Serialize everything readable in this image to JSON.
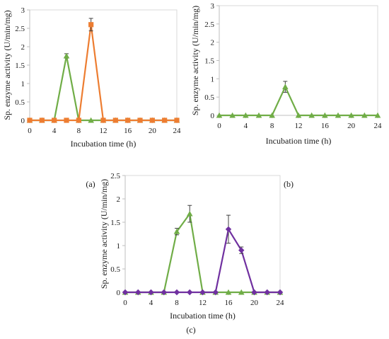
{
  "chart_data": [
    {
      "panel": "a",
      "panel_label": "(a)",
      "type": "line",
      "xlabel": "Incubation time (h)",
      "ylabel": "Sp. enzyme activity (U/min/mg)",
      "xlim": [
        0,
        24
      ],
      "ylim": [
        0,
        3
      ],
      "xticks": [
        0,
        4,
        8,
        12,
        16,
        20,
        24
      ],
      "yticks": [
        0,
        0.5,
        1,
        1.5,
        2,
        2.5,
        3
      ],
      "grid": false,
      "x": [
        0,
        2,
        4,
        6,
        8,
        10,
        12,
        14,
        16,
        18,
        20,
        22,
        24
      ],
      "series": [
        {
          "color": "#70ad47",
          "marker": "triangle",
          "values": [
            0,
            0,
            0,
            1.75,
            0,
            0,
            0,
            0,
            0,
            0,
            0,
            0,
            0
          ],
          "errors": [
            0,
            0,
            0,
            0.06,
            0,
            0,
            0,
            0,
            0,
            0,
            0,
            0,
            0
          ]
        },
        {
          "color": "#ed7d31",
          "marker": "square",
          "values": [
            0,
            0,
            0,
            0,
            0,
            2.6,
            0,
            0,
            0,
            0,
            0,
            0,
            0
          ],
          "errors": [
            0,
            0,
            0,
            0,
            0,
            0.17,
            0,
            0,
            0,
            0,
            0,
            0,
            0
          ]
        }
      ]
    },
    {
      "panel": "b",
      "panel_label": "(b)",
      "type": "line",
      "xlabel": "Incubation time (h)",
      "ylabel": "Sp. enzyme activity (U/min/mg)",
      "xlim": [
        0,
        24
      ],
      "ylim": [
        0,
        3
      ],
      "xticks": [
        0,
        4,
        8,
        12,
        16,
        20,
        24
      ],
      "yticks": [
        0,
        0.5,
        1,
        1.5,
        2,
        2.5,
        3
      ],
      "grid": false,
      "x": [
        0,
        2,
        4,
        6,
        8,
        10,
        12,
        14,
        16,
        18,
        20,
        22,
        24
      ],
      "series": [
        {
          "color": "#70ad47",
          "marker": "triangle",
          "values": [
            0,
            0,
            0,
            0,
            0,
            0.78,
            0,
            0,
            0,
            0,
            0,
            0,
            0
          ],
          "errors": [
            0,
            0,
            0,
            0,
            0,
            0.15,
            0,
            0,
            0,
            0,
            0,
            0,
            0
          ]
        }
      ]
    },
    {
      "panel": "c",
      "panel_label": "(c)",
      "type": "line",
      "xlabel": "Incubation time (h)",
      "ylabel": "Sp. enzyme activity (U/min/mg)",
      "xlim": [
        0,
        24
      ],
      "ylim": [
        0,
        2.5
      ],
      "xticks": [
        0,
        4,
        8,
        12,
        16,
        20,
        24
      ],
      "yticks": [
        0,
        0.5,
        1,
        1.5,
        2,
        2.5
      ],
      "grid": false,
      "x": [
        0,
        2,
        4,
        6,
        8,
        10,
        12,
        14,
        16,
        18,
        20,
        22,
        24
      ],
      "series": [
        {
          "color": "#70ad47",
          "marker": "triangle",
          "values": [
            0,
            0,
            0,
            0,
            1.3,
            1.68,
            0,
            0,
            0,
            0,
            0,
            0,
            0
          ],
          "errors": [
            0,
            0,
            0,
            0,
            0.07,
            0.18,
            0,
            0,
            0,
            0,
            0,
            0,
            0
          ]
        },
        {
          "color": "#7030a0",
          "marker": "diamond",
          "values": [
            0,
            0,
            0,
            0,
            0,
            0,
            0,
            0,
            1.35,
            0.9,
            0,
            0,
            0
          ],
          "errors": [
            0,
            0,
            0,
            0,
            0,
            0,
            0,
            0,
            0.3,
            0.07,
            0,
            0,
            0
          ]
        }
      ]
    }
  ]
}
